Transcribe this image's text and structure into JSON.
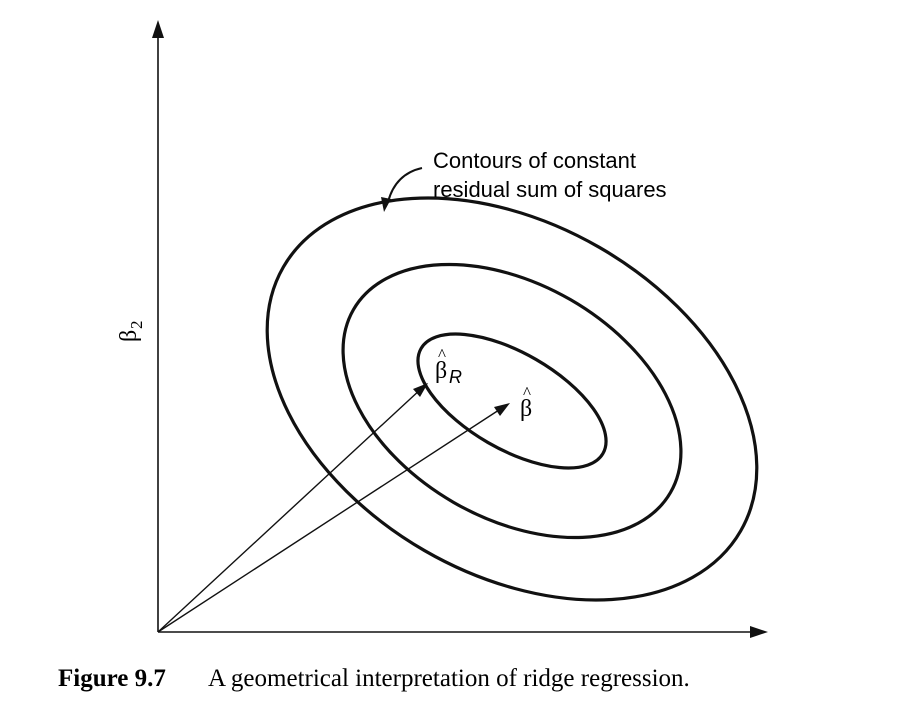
{
  "figure": {
    "axis_label_y": "β",
    "axis_label_y_subscript": "2",
    "callout": {
      "line1": "Contours of constant",
      "line2": "residual sum of squares"
    },
    "beta_r_label": "β",
    "beta_r_hat": "^",
    "beta_r_subscript": "R",
    "beta_label": "β",
    "beta_hat": "^",
    "caption": {
      "number": "Figure 9.7",
      "text": "A geometrical interpretation of ridge regression."
    }
  }
}
